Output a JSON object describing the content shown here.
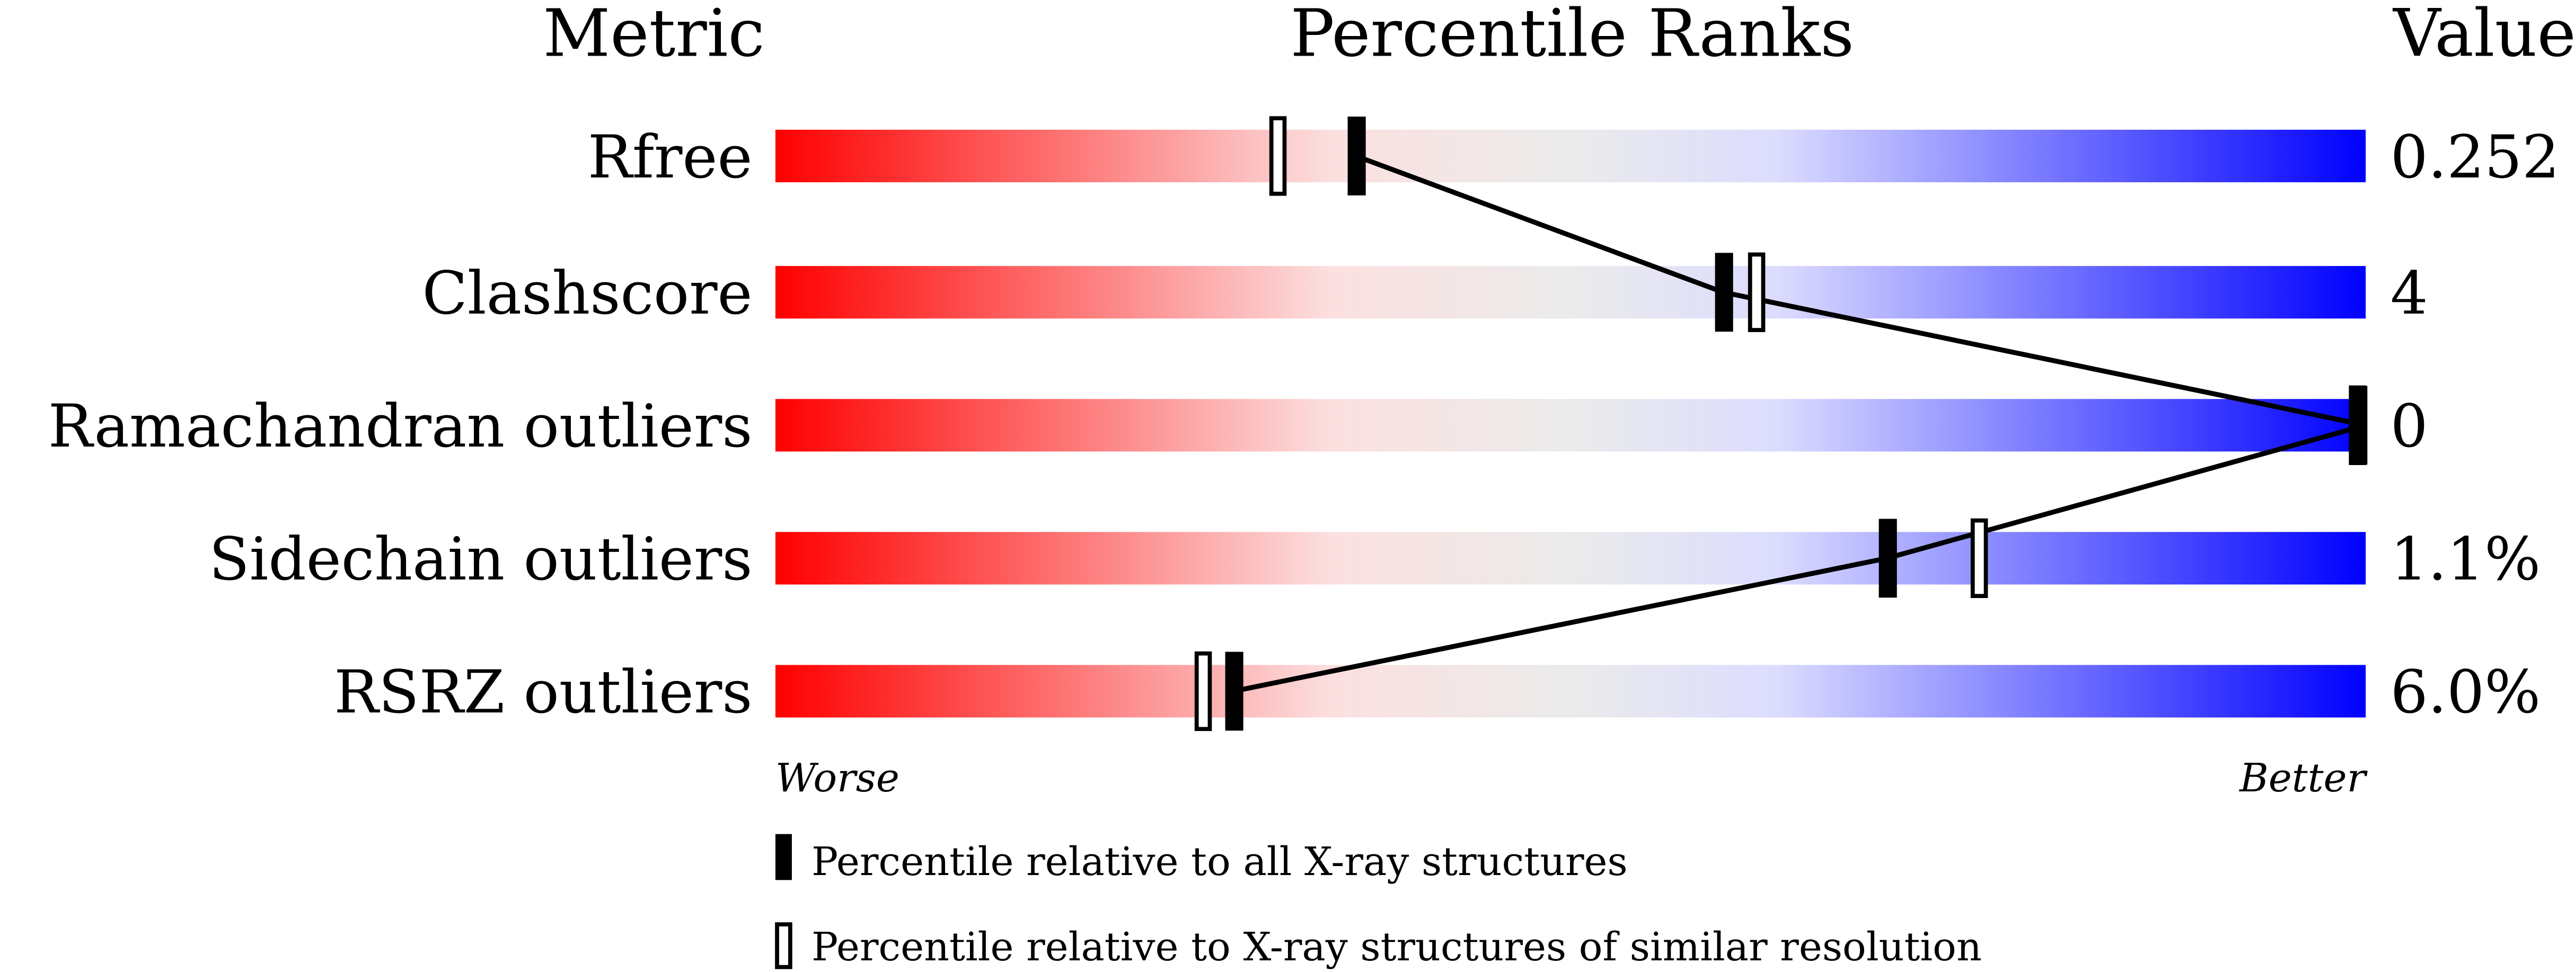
{
  "chart_data": {
    "type": "percentile-slider",
    "headers": {
      "metric": "Metric",
      "ranks": "Percentile Ranks",
      "value": "Value"
    },
    "xlim": [
      0,
      100
    ],
    "axis_labels": {
      "left": "Worse",
      "right": "Better"
    },
    "gradient_colors": [
      "#ff0000",
      "#fce0e0",
      "#ebebeb",
      "#dcdcff",
      "#0000ff"
    ],
    "metrics": [
      {
        "name": "Rfree",
        "value": "0.252",
        "percentile_all": 36.5,
        "percentile_similar": 31.6
      },
      {
        "name": "Clashscore",
        "value": "4",
        "percentile_all": 59.6,
        "percentile_similar": 61.7
      },
      {
        "name": "Ramachandran outliers",
        "value": "0",
        "percentile_all": 100,
        "percentile_similar": 100
      },
      {
        "name": "Sidechain outliers",
        "value": "1.1%",
        "percentile_all": 69.9,
        "percentile_similar": 75.7
      },
      {
        "name": "RSRZ outliers",
        "value": "6.0%",
        "percentile_all": 28.8,
        "percentile_similar": 26.9
      }
    ],
    "legend": {
      "all": "Percentile relative to all X-ray structures",
      "similar": "Percentile relative to X-ray structures of similar resolution"
    }
  }
}
